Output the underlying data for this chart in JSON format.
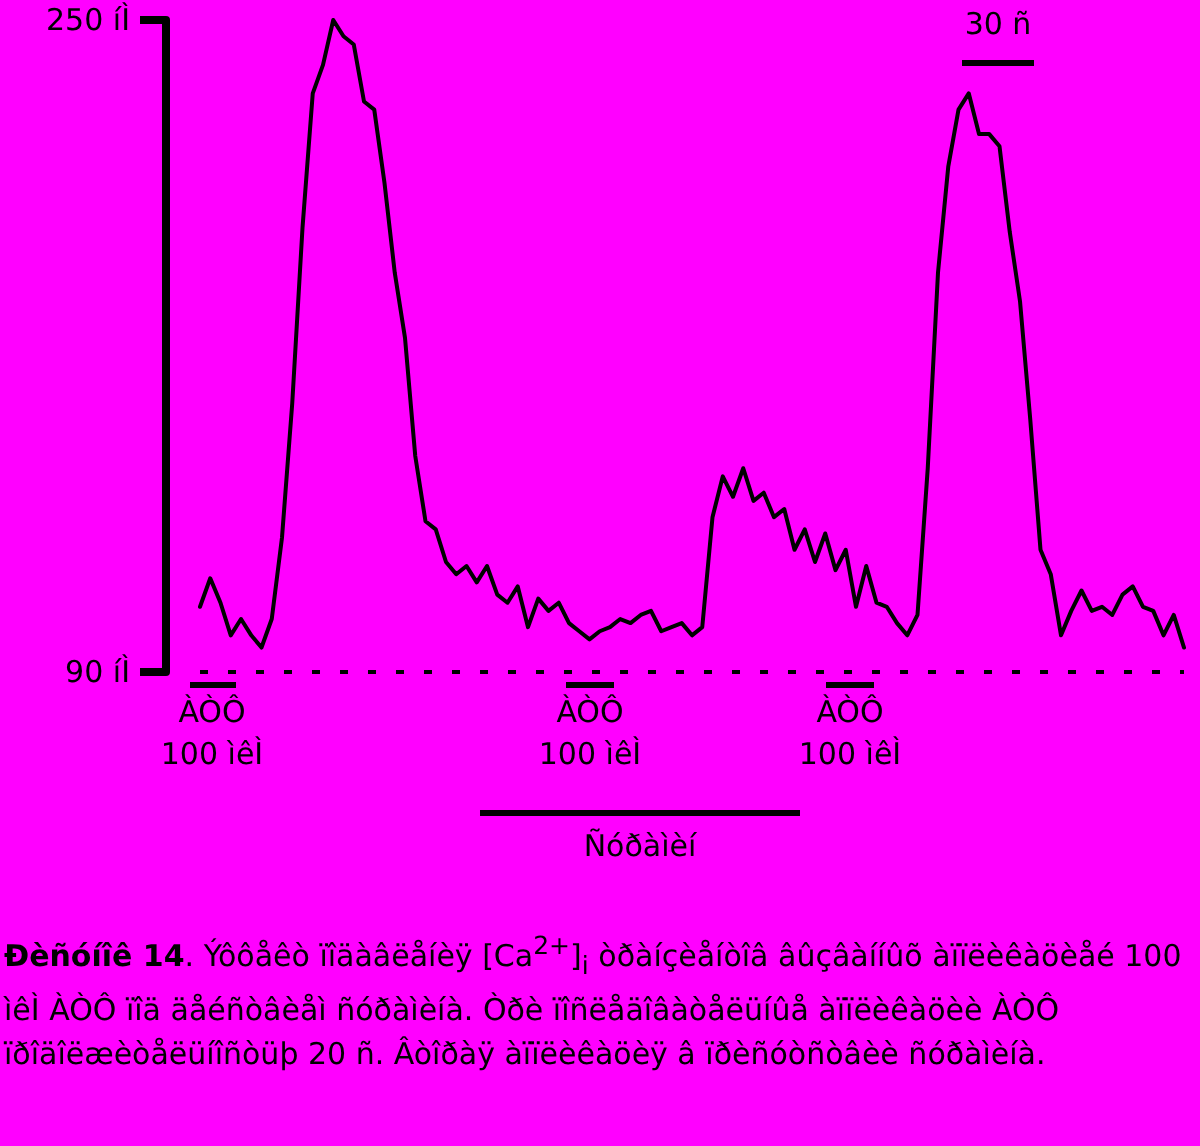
{
  "chart_data": {
    "type": "line",
    "title": "Ðèñóíîê 14. Ýôôåêò ïîäàâëåíèÿ [Ca$^{2+}$]$_{i}$ òðàíçèåíòîâ âûçâàííûõ àïïëèêàöèåé 100 ìêÌ ÀÒÔ ïîä äåéñòâèåì ñóðàìèíà. Òðè ïîñëåäîâàòåëüíûå àïïëèêàöèè ÀÒÔ ïðîäîëæèòåëüíîñòüþ 20 ñ. Âòîðàÿ àïïëèêàöèÿ â ïðèñóòñòâèè ñóðàìèíà.",
    "annotations": [
      "ÀÒÔ\n100 ìêÌ",
      "ÀÒÔ\n100 ìêÌ",
      "ÀÒÔ\n100 ìêÌ",
      "Ñóðàìèí",
      "30 ñ"
    ],
    "categories": [
      null,
      null,
      null,
      null,
      null,
      null,
      null,
      null,
      null,
      null,
      null,
      null,
      null,
      null,
      null,
      null,
      null,
      null,
      null,
      null,
      null,
      null,
      null,
      null,
      null,
      null,
      null,
      null,
      null,
      null,
      null,
      null,
      null,
      null,
      null,
      null,
      null,
      null,
      null,
      null,
      null,
      null,
      null,
      null,
      null,
      null,
      null,
      null,
      null,
      null,
      null,
      null,
      null,
      null,
      null,
      null,
      null,
      null,
      null,
      null,
      null,
      null,
      null,
      null,
      null,
      null,
      null,
      null,
      null,
      null,
      null,
      null,
      null,
      null,
      null,
      null,
      null,
      null,
      null,
      null,
      null,
      null,
      null,
      null,
      null,
      null,
      null,
      null,
      null,
      null,
      null,
      null,
      null,
      null,
      null,
      null,
      null
    ],
    "series": [
      {
        "color": "#000000",
        "values": [
          106,
          113,
          107,
          99,
          103,
          99,
          96,
          103,
          123,
          156,
          199,
          232,
          239,
          250,
          246,
          244,
          230,
          228,
          210,
          188,
          172,
          143,
          127,
          125,
          117,
          114,
          116,
          112,
          116,
          109,
          107,
          111,
          101,
          108,
          105,
          107,
          102,
          100,
          98,
          100,
          101,
          103,
          102,
          104,
          105,
          100,
          101,
          102,
          99,
          101,
          128,
          138,
          133,
          140,
          132,
          134,
          128,
          130,
          120,
          125,
          117,
          124,
          115,
          120,
          106,
          116,
          107,
          106,
          102,
          99,
          104,
          140,
          188,
          214,
          228,
          232,
          222,
          222,
          219,
          198,
          181,
          152,
          120,
          114,
          99,
          105,
          110,
          105,
          106,
          104,
          109,
          111,
          106,
          105,
          99,
          104,
          96
        ]
      }
    ],
    "ylim": [
      90,
      250
    ],
    "yticks": [
      {
        "value": 90,
        "label": "90 íÌ"
      },
      {
        "value": 250,
        "label": "250 íÌ"
      }
    ],
    "tick_labels": "y",
    "grid": false,
    "line_style": "solid",
    "ref_lines": [
      {
        "axis": "y",
        "value": 90,
        "color": "#000000",
        "line_style": "dashed"
      }
    ]
  }
}
